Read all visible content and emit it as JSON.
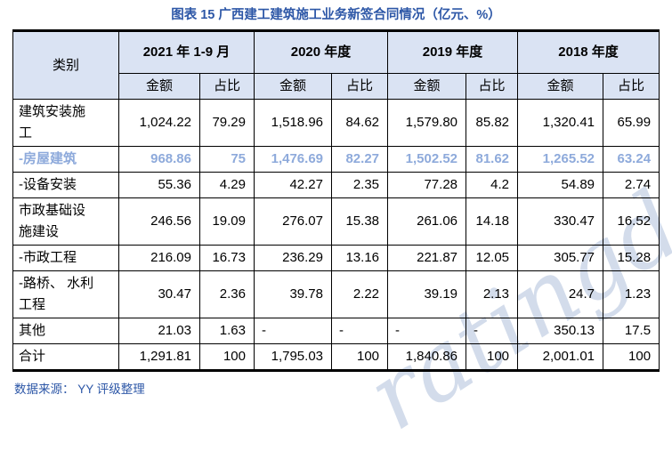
{
  "title": "图表 15 广西建工建筑施工业务新签合同情况（亿元、%）",
  "source": "数据来源： YY 评级整理",
  "watermark": "ratingdog",
  "colors": {
    "title_blue": "#2D57A7",
    "header_bg": "#DAE3F3",
    "highlight_row": "#8EAADB",
    "border": "#000000"
  },
  "table": {
    "category_header": "类别",
    "year_groups": [
      "2021 年 1-9 月",
      "2020 年度",
      "2019 年度",
      "2018 年度"
    ],
    "sub_headers": {
      "amount": "金额",
      "share": "占比"
    },
    "rows": [
      {
        "category": "建筑安装施\n工",
        "highlight": false,
        "values": [
          "1,024.22",
          "79.29",
          "1,518.96",
          "84.62",
          "1,579.80",
          "85.82",
          "1,320.41",
          "65.99"
        ]
      },
      {
        "category": "-房屋建筑",
        "highlight": true,
        "values": [
          "968.86",
          "75",
          "1,476.69",
          "82.27",
          "1,502.52",
          "81.62",
          "1,265.52",
          "63.24"
        ]
      },
      {
        "category": "-设备安装",
        "highlight": false,
        "values": [
          "55.36",
          "4.29",
          "42.27",
          "2.35",
          "77.28",
          "4.2",
          "54.89",
          "2.74"
        ]
      },
      {
        "category": "市政基础设\n施建设",
        "highlight": false,
        "values": [
          "246.56",
          "19.09",
          "276.07",
          "15.38",
          "261.06",
          "14.18",
          "330.47",
          "16.52"
        ]
      },
      {
        "category": "-市政工程",
        "highlight": false,
        "values": [
          "216.09",
          "16.73",
          "236.29",
          "13.16",
          "221.87",
          "12.05",
          "305.77",
          "15.28"
        ]
      },
      {
        "category": "-路桥、 水利\n工程",
        "highlight": false,
        "values": [
          "30.47",
          "2.36",
          "39.78",
          "2.22",
          "39.19",
          "2.13",
          "24.7",
          "1.23"
        ]
      },
      {
        "category": "其他",
        "highlight": false,
        "values": [
          "21.03",
          "1.63",
          "-",
          "-",
          "-",
          "-",
          "350.13",
          "17.5"
        ]
      },
      {
        "category": "合计",
        "highlight": false,
        "values": [
          "1,291.81",
          "100",
          "1,795.03",
          "100",
          "1,840.86",
          "100",
          "2,001.01",
          "100"
        ]
      }
    ]
  },
  "chart_data": {
    "type": "table",
    "title": "图表 15 广西建工建筑施工业务新签合同情况（亿元、%）",
    "columns": [
      "类别",
      "2021年1-9月 金额",
      "2021年1-9月 占比",
      "2020年度 金额",
      "2020年度 占比",
      "2019年度 金额",
      "2019年度 占比",
      "2018年度 金额",
      "2018年度 占比"
    ],
    "rows": [
      [
        "建筑安装施工",
        "1,024.22",
        "79.29",
        "1,518.96",
        "84.62",
        "1,579.80",
        "85.82",
        "1,320.41",
        "65.99"
      ],
      [
        "-房屋建筑",
        "968.86",
        "75",
        "1,476.69",
        "82.27",
        "1,502.52",
        "81.62",
        "1,265.52",
        "63.24"
      ],
      [
        "-设备安装",
        "55.36",
        "4.29",
        "42.27",
        "2.35",
        "77.28",
        "4.2",
        "54.89",
        "2.74"
      ],
      [
        "市政基础设施建设",
        "246.56",
        "19.09",
        "276.07",
        "15.38",
        "261.06",
        "14.18",
        "330.47",
        "16.52"
      ],
      [
        "-市政工程",
        "216.09",
        "16.73",
        "236.29",
        "13.16",
        "221.87",
        "12.05",
        "305.77",
        "15.28"
      ],
      [
        "-路桥、水利工程",
        "30.47",
        "2.36",
        "39.78",
        "2.22",
        "39.19",
        "2.13",
        "24.7",
        "1.23"
      ],
      [
        "其他",
        "21.03",
        "1.63",
        "-",
        "-",
        "-",
        "-",
        "350.13",
        "17.5"
      ],
      [
        "合计",
        "1,291.81",
        "100",
        "1,795.03",
        "100",
        "1,840.86",
        "100",
        "2,001.01",
        "100"
      ]
    ],
    "source": "数据来源： YY 评级整理"
  }
}
